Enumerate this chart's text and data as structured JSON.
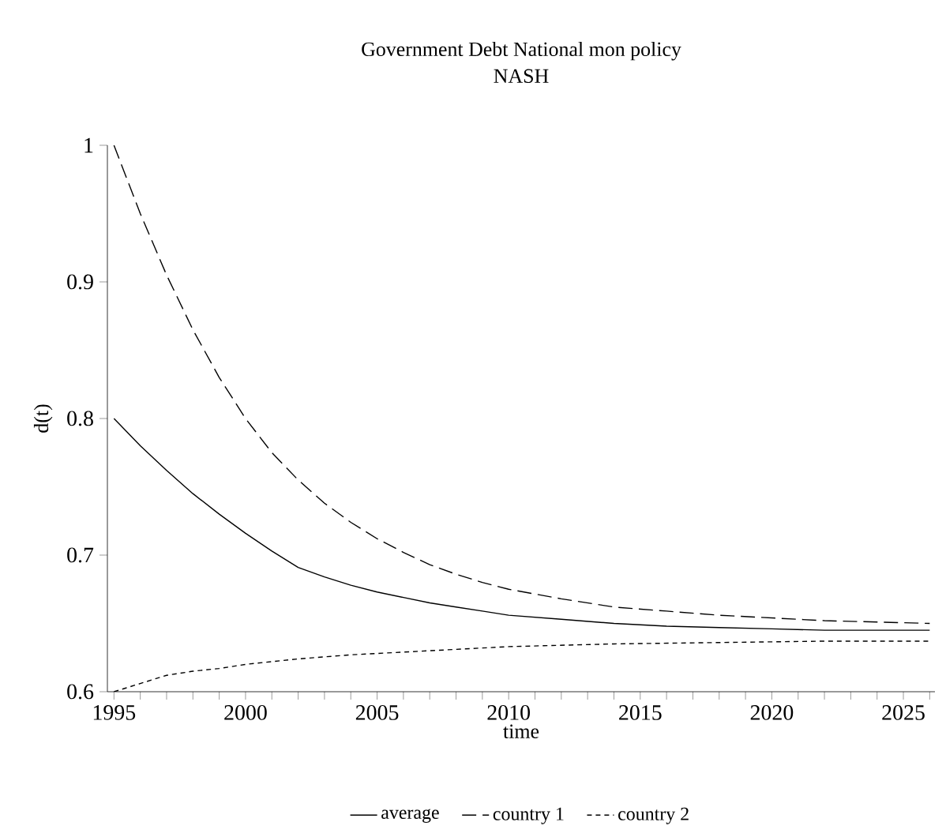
{
  "chart_data": {
    "type": "line",
    "title": "Government Debt National mon policy",
    "subtitle": "NASH",
    "xlabel": "time",
    "ylabel": "d(t)",
    "xlim": [
      1994.75,
      2026.2
    ],
    "ylim": [
      0.6,
      1
    ],
    "xticks": [
      1995,
      {
        "value": 1996,
        "label": null
      },
      {
        "value": 1997,
        "label": null
      },
      {
        "value": 1998,
        "label": null
      },
      {
        "value": 1999,
        "label": null
      },
      2000,
      {
        "value": 2001,
        "label": null
      },
      {
        "value": 2002,
        "label": null
      },
      {
        "value": 2003,
        "label": null
      },
      {
        "value": 2004,
        "label": null
      },
      2005,
      {
        "value": 2006,
        "label": null
      },
      {
        "value": 2007,
        "label": null
      },
      {
        "value": 2008,
        "label": null
      },
      {
        "value": 2009,
        "label": null
      },
      2010,
      {
        "value": 2011,
        "label": null
      },
      {
        "value": 2012,
        "label": null
      },
      {
        "value": 2013,
        "label": null
      },
      {
        "value": 2014,
        "label": null
      },
      2015,
      {
        "value": 2016,
        "label": null
      },
      {
        "value": 2017,
        "label": null
      },
      {
        "value": 2018,
        "label": null
      },
      {
        "value": 2019,
        "label": null
      },
      2020,
      {
        "value": 2021,
        "label": null
      },
      {
        "value": 2022,
        "label": null
      },
      {
        "value": 2023,
        "label": null
      },
      {
        "value": 2024,
        "label": null
      },
      2025,
      {
        "value": 2026,
        "label": null
      }
    ],
    "yticks": [
      0.6,
      0.7,
      0.8,
      0.9,
      1
    ],
    "legend": "bottom",
    "grid": false,
    "marker": "none",
    "series": [
      {
        "name": "average",
        "color": "#000000",
        "line_style": "solid",
        "x": [
          1995,
          1996,
          1997,
          1998,
          1999,
          2000,
          2001,
          2002,
          2003,
          2004,
          2005,
          2006,
          2007,
          2008,
          2009,
          2010,
          2012,
          2014,
          2016,
          2018,
          2020,
          2022,
          2024,
          2026
        ],
        "values": [
          0.8,
          0.78,
          0.762,
          0.745,
          0.73,
          0.716,
          0.703,
          0.691,
          0.684,
          0.678,
          0.673,
          0.669,
          0.665,
          0.662,
          0.659,
          0.656,
          0.653,
          0.65,
          0.648,
          0.647,
          0.646,
          0.645,
          0.645,
          0.645
        ]
      },
      {
        "name": "country 1",
        "color": "#000000",
        "line_style": "dashed",
        "x": [
          1995,
          1996,
          1997,
          1998,
          1999,
          2000,
          2001,
          2002,
          2003,
          2004,
          2005,
          2006,
          2007,
          2008,
          2009,
          2010,
          2012,
          2014,
          2016,
          2018,
          2020,
          2022,
          2024,
          2026
        ],
        "values": [
          1.0,
          0.95,
          0.905,
          0.865,
          0.83,
          0.8,
          0.775,
          0.755,
          0.738,
          0.724,
          0.712,
          0.702,
          0.693,
          0.686,
          0.68,
          0.675,
          0.668,
          0.662,
          0.659,
          0.656,
          0.654,
          0.652,
          0.651,
          0.65
        ]
      },
      {
        "name": "country 2",
        "color": "#000000",
        "line_style": "dotted",
        "x": [
          1995,
          1996,
          1997,
          1998,
          1999,
          2000,
          2002,
          2004,
          2006,
          2008,
          2010,
          2014,
          2018,
          2022,
          2026
        ],
        "values": [
          0.6,
          0.606,
          0.612,
          0.615,
          0.617,
          0.62,
          0.624,
          0.627,
          0.629,
          0.631,
          0.633,
          0.635,
          0.636,
          0.637,
          0.637
        ]
      }
    ]
  }
}
